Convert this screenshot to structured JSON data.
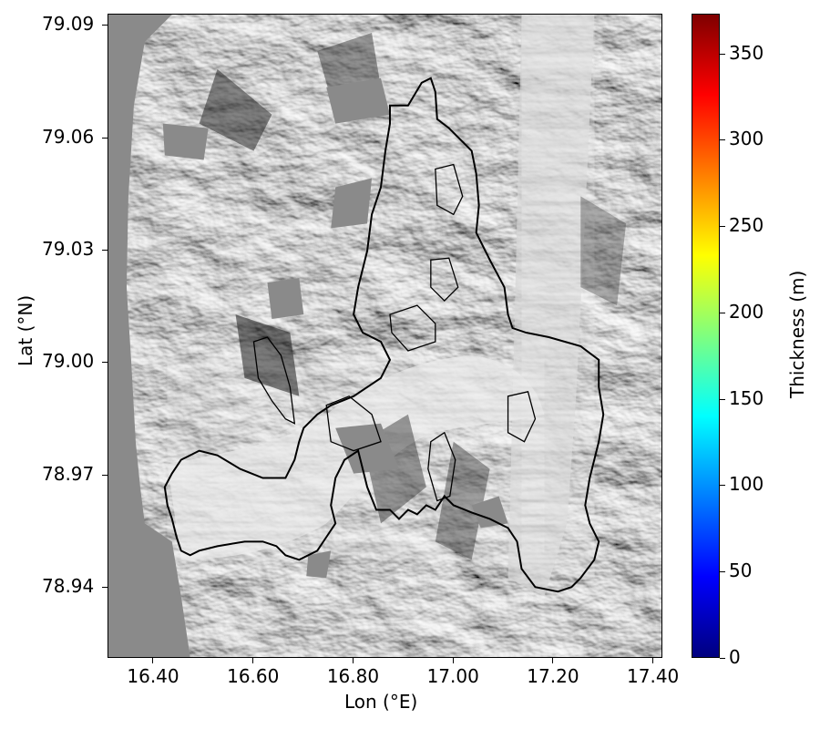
{
  "axes": {
    "xlabel": "Lon (°E)",
    "ylabel": "Lat (°N)",
    "x_ticks": [
      {
        "label": "16.40",
        "value": 16.4
      },
      {
        "label": "16.60",
        "value": 16.6
      },
      {
        "label": "16.80",
        "value": 16.8
      },
      {
        "label": "17.00",
        "value": 17.0
      },
      {
        "label": "17.20",
        "value": 17.2
      },
      {
        "label": "17.40",
        "value": 17.4
      }
    ],
    "y_ticks": [
      {
        "label": "79.09",
        "value": 79.09
      },
      {
        "label": "79.06",
        "value": 79.06
      },
      {
        "label": "79.03",
        "value": 79.03
      },
      {
        "label": "79.00",
        "value": 79.0
      },
      {
        "label": "78.97",
        "value": 78.97
      },
      {
        "label": "78.94",
        "value": 78.94
      }
    ],
    "xlim": [
      16.31,
      17.42
    ],
    "ylim": [
      78.921,
      79.093
    ]
  },
  "colorbar": {
    "label": "Thickness (m)",
    "colormap": "jet",
    "range": [
      0,
      373
    ],
    "ticks": [
      {
        "label": "0",
        "value": 0
      },
      {
        "label": "50",
        "value": 50
      },
      {
        "label": "100",
        "value": 100
      },
      {
        "label": "150",
        "value": 150
      },
      {
        "label": "200",
        "value": 200
      },
      {
        "label": "250",
        "value": 250
      },
      {
        "label": "300",
        "value": 300
      },
      {
        "label": "350",
        "value": 350
      }
    ],
    "colors": [
      "#00007f",
      "#0000ff",
      "#007fff",
      "#00ffff",
      "#7fff7f",
      "#ffff00",
      "#ff7f00",
      "#ff0000",
      "#7f0000"
    ]
  },
  "map": {
    "basemap": "grayscale hillshade",
    "outline_color": "#000000",
    "outside_color": "#8a8a8a"
  }
}
